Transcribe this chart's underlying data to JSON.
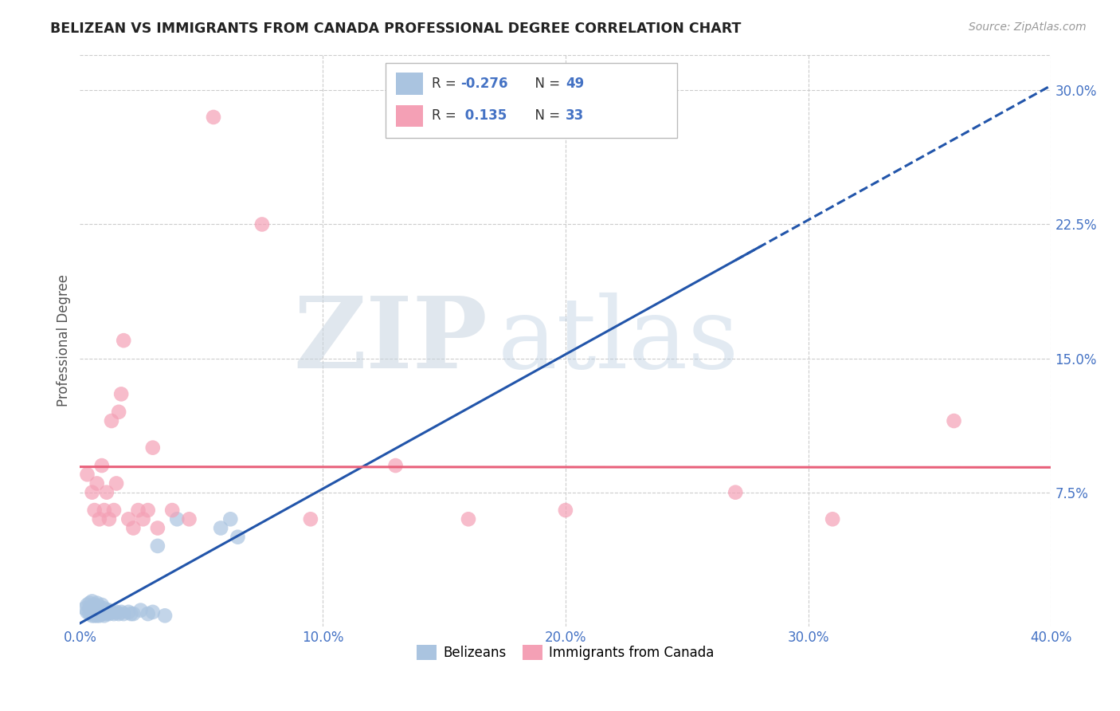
{
  "title": "BELIZEAN VS IMMIGRANTS FROM CANADA PROFESSIONAL DEGREE CORRELATION CHART",
  "source": "Source: ZipAtlas.com",
  "tick_color": "#4472C4",
  "ylabel": "Professional Degree",
  "xlim": [
    0.0,
    0.4
  ],
  "ylim": [
    0.0,
    0.32
  ],
  "xticks": [
    0.0,
    0.1,
    0.2,
    0.3,
    0.4
  ],
  "xtick_labels": [
    "0.0%",
    "10.0%",
    "20.0%",
    "30.0%",
    "40.0%"
  ],
  "yticks": [
    0.0,
    0.075,
    0.15,
    0.225,
    0.3
  ],
  "ytick_labels": [
    "",
    "7.5%",
    "15.0%",
    "22.5%",
    "30.0%"
  ],
  "grid_color": "#cccccc",
  "background_color": "#ffffff",
  "belizean_color": "#aac4e0",
  "canada_color": "#f4a0b5",
  "belizean_line_color": "#2255aa",
  "canada_line_color": "#e8607a",
  "watermark_zip": "ZIP",
  "watermark_atlas": "atlas",
  "belizean_x": [
    0.002,
    0.003,
    0.003,
    0.004,
    0.004,
    0.004,
    0.005,
    0.005,
    0.005,
    0.005,
    0.006,
    0.006,
    0.006,
    0.006,
    0.007,
    0.007,
    0.007,
    0.007,
    0.008,
    0.008,
    0.008,
    0.009,
    0.009,
    0.009,
    0.01,
    0.01,
    0.01,
    0.011,
    0.011,
    0.012,
    0.012,
    0.013,
    0.014,
    0.015,
    0.016,
    0.017,
    0.018,
    0.02,
    0.021,
    0.022,
    0.025,
    0.028,
    0.03,
    0.032,
    0.035,
    0.04,
    0.058,
    0.062,
    0.065
  ],
  "belizean_y": [
    0.01,
    0.008,
    0.012,
    0.007,
    0.01,
    0.013,
    0.006,
    0.009,
    0.011,
    0.014,
    0.006,
    0.008,
    0.01,
    0.012,
    0.006,
    0.008,
    0.01,
    0.013,
    0.006,
    0.008,
    0.011,
    0.007,
    0.009,
    0.012,
    0.006,
    0.008,
    0.01,
    0.007,
    0.009,
    0.007,
    0.009,
    0.008,
    0.007,
    0.008,
    0.007,
    0.008,
    0.007,
    0.008,
    0.007,
    0.007,
    0.009,
    0.007,
    0.008,
    0.045,
    0.006,
    0.06,
    0.055,
    0.06,
    0.05
  ],
  "canada_x": [
    0.003,
    0.005,
    0.006,
    0.007,
    0.008,
    0.009,
    0.01,
    0.011,
    0.012,
    0.013,
    0.014,
    0.015,
    0.016,
    0.017,
    0.018,
    0.02,
    0.022,
    0.024,
    0.026,
    0.028,
    0.03,
    0.032,
    0.038,
    0.045,
    0.055,
    0.075,
    0.095,
    0.13,
    0.16,
    0.2,
    0.27,
    0.31,
    0.36
  ],
  "canada_y": [
    0.085,
    0.075,
    0.065,
    0.08,
    0.06,
    0.09,
    0.065,
    0.075,
    0.06,
    0.115,
    0.065,
    0.08,
    0.12,
    0.13,
    0.16,
    0.06,
    0.055,
    0.065,
    0.06,
    0.065,
    0.1,
    0.055,
    0.065,
    0.06,
    0.285,
    0.225,
    0.06,
    0.09,
    0.06,
    0.065,
    0.075,
    0.06,
    0.115
  ]
}
